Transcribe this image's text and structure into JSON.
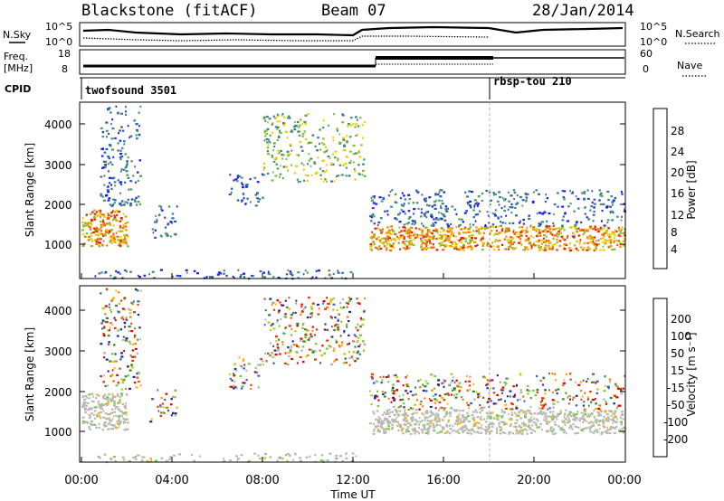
{
  "header": {
    "station": "Blackstone (fitACF)",
    "beam": "Beam 07",
    "date": "28/Jan/2014"
  },
  "noise_panel": {
    "left_label": "N.Sky",
    "right_label": "N.Search",
    "left_ticks": [
      "10^5",
      "10^0"
    ],
    "right_ticks": [
      "10^5",
      "10^0"
    ]
  },
  "freq_panel": {
    "left_label_1": "Freq.",
    "left_label_2": "[MHz]",
    "right_label": "Nave",
    "left_ticks": [
      "18",
      "8"
    ],
    "right_ticks": [
      "60",
      "0"
    ]
  },
  "cpid": {
    "label": "CPID",
    "segments": [
      {
        "name": "twofsound 3501",
        "start_hour": 0
      },
      {
        "name": "rbsp-tou 210",
        "start_hour": 18
      }
    ]
  },
  "x_axis": {
    "label": "Time UT",
    "ticks": [
      "00:00",
      "04:00",
      "08:00",
      "12:00",
      "16:00",
      "20:00",
      "00:00"
    ]
  },
  "power_panel": {
    "ylabel": "Slant Range [km]",
    "yticks": [
      "1000",
      "2000",
      "3000",
      "4000"
    ],
    "colorbar_label": "Power [dB]",
    "colorbar_ticks": [
      "4",
      "8",
      "12",
      "16",
      "20",
      "24",
      "28"
    ]
  },
  "velocity_panel": {
    "ylabel": "Slant Range [km]",
    "yticks": [
      "1000",
      "2000",
      "3000",
      "4000"
    ],
    "colorbar_label": "Velocity [m s⁻¹]",
    "colorbar_ticks": [
      "200",
      "100",
      "50",
      "15",
      "-15",
      "-50",
      "-100",
      "-200"
    ]
  },
  "chart_data": {
    "type": "heatmap",
    "x_range_hours": [
      0,
      24
    ],
    "y_range_km": [
      180,
      4550
    ],
    "power_colors": [
      "#1a1aff",
      "#2e58b8",
      "#3a7f8a",
      "#4a9a6a",
      "#8ac030",
      "#f0d000",
      "#f7a000",
      "#f26a00",
      "#e82000"
    ],
    "velocity_colors": [
      "#1e2a9e",
      "#3a5fc8",
      "#2e8a2e",
      "#6ad040",
      "#b8b8b0",
      "#f0b800",
      "#f57c00",
      "#e83a00",
      "#e00000"
    ],
    "regions": [
      {
        "t": [
          0.0,
          2.0
        ],
        "r": [
          1000,
          1900
        ],
        "power": "high",
        "velocity": "low"
      },
      {
        "t": [
          0.8,
          2.6
        ],
        "r": [
          2000,
          4500
        ],
        "power": "low",
        "velocity": "mixed"
      },
      {
        "t": [
          3.0,
          4.2
        ],
        "r": [
          1200,
          2000
        ],
        "power": "low",
        "velocity": "mixed"
      },
      {
        "t": [
          6.5,
          8.0
        ],
        "r": [
          2000,
          2800
        ],
        "power": "low",
        "velocity": "mixed"
      },
      {
        "t": [
          8.0,
          12.5
        ],
        "r": [
          2600,
          4300
        ],
        "power": "medium",
        "velocity": "mixed"
      },
      {
        "t": [
          0.5,
          12.3
        ],
        "r": [
          200,
          420
        ],
        "power": "low",
        "velocity": "low"
      },
      {
        "t": [
          12.7,
          24.0
        ],
        "r": [
          900,
          1500
        ],
        "power": "high",
        "velocity": "low"
      },
      {
        "t": [
          12.7,
          24.0
        ],
        "r": [
          1500,
          2400
        ],
        "power": "low",
        "velocity": "mixed"
      }
    ]
  }
}
